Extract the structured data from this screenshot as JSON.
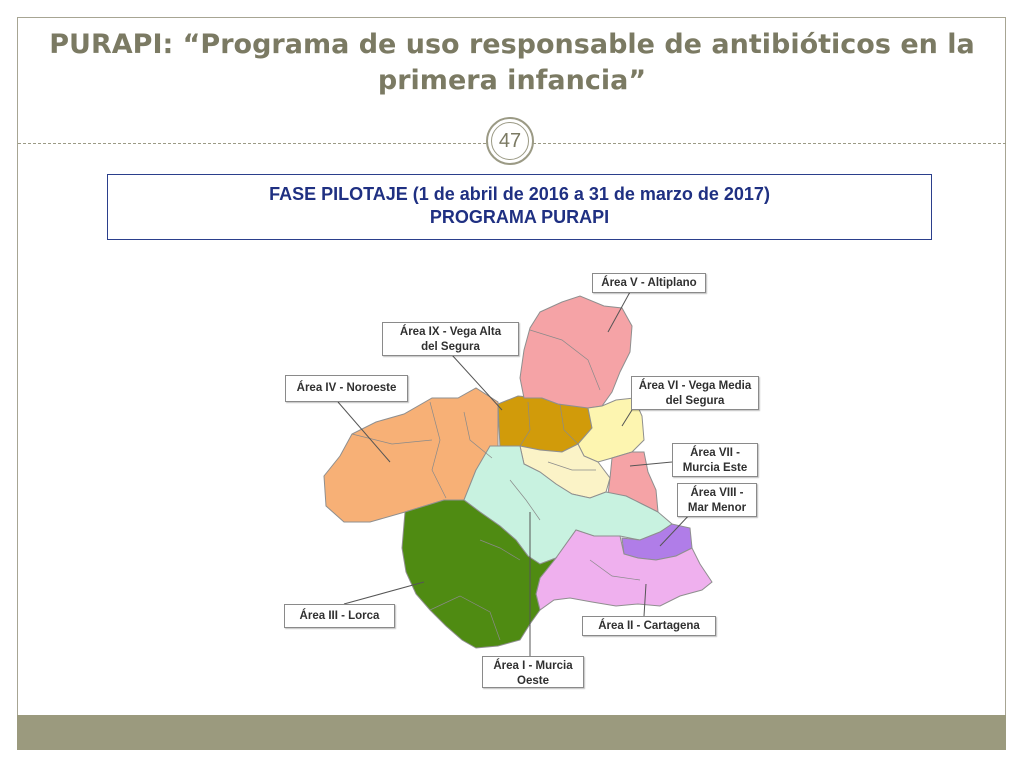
{
  "slide": {
    "title": "PURAPI: “Programa de uso responsable de antibióticos en la primera infancia”",
    "number": "47"
  },
  "phase": {
    "line1": "FASE PILOTAJE (1 de abril de 2016 a 31 de marzo de 2017)",
    "line2": "PROGRAMA PURAPI"
  },
  "map": {
    "areas": {
      "area_v": "Área V - Altiplano",
      "area_ix_l1": "Área IX - Vega Alta",
      "area_ix_l2": "del Segura",
      "area_iv": "Área IV - Noroeste",
      "area_vi_l1": "Área VI - Vega Media",
      "area_vi_l2": "del Segura",
      "area_vii_l1": "Área VII -",
      "area_vii_l2": "Murcia Este",
      "area_viii_l1": "Área VIII -",
      "area_viii_l2": "Mar Menor",
      "area_iii": "Área III - Lorca",
      "area_ii": "Área II - Cartagena",
      "area_i_l1": "Área I - Murcia",
      "area_i_l2": "Oeste"
    },
    "colors": {
      "area_i": "#4f8b12",
      "area_ii": "#efb0ee",
      "area_iii": "#c8f2e0",
      "area_iv": "#f7b076",
      "area_v": "#f5a3a6",
      "area_vi": "#fdf5b0",
      "area_vii": "#f5a3a6",
      "area_viii": "#b07de8",
      "area_ix": "#d19b0a",
      "area_murcia_centre": "#fbf3c7"
    }
  }
}
